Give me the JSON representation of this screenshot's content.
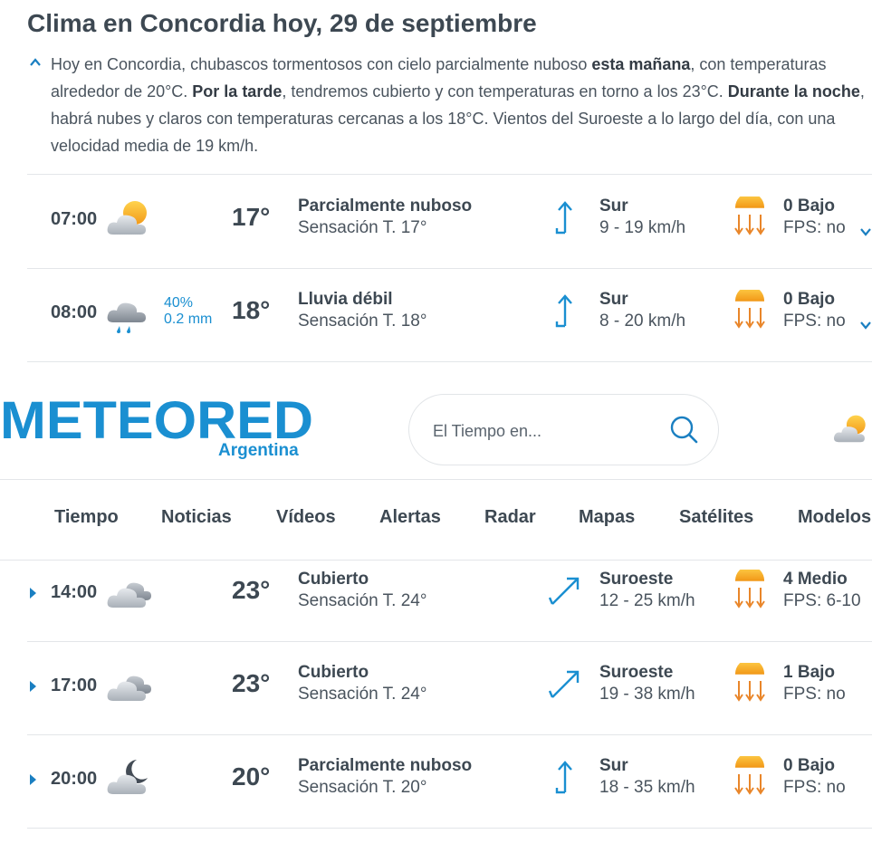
{
  "page_title": "Clima en Concordia hoy, 29 de septiembre",
  "summary": {
    "p1": "Hoy en Concordia, chubascos tormentosos con cielo parcialmente nuboso ",
    "b1": "esta mañana",
    "p2": ", con temperaturas alrededor de 20°C. ",
    "b2": "Por la tarde",
    "p3": ", tendremos cubierto y con temperaturas en torno a los 23°C. ",
    "b3": "Durante la noche",
    "p4": ", habrá nubes y claros con temperaturas cercanas a los 18°C. Vientos del Suroeste a lo largo del día, con una velocidad media de 19 km/h."
  },
  "rows_top": [
    {
      "time": "07:00",
      "icon": "sun-cloud-icon",
      "rain_pct": "",
      "rain_mm": "",
      "temp": "17°",
      "desc": "Parcialmente nuboso",
      "feel": "Sensación T. 17°",
      "wind_dir": "Sur",
      "wind_speed": "9 - 19 km/h",
      "uv": "0 Bajo",
      "fps": "FPS: no"
    },
    {
      "time": "08:00",
      "icon": "rain-cloud-icon",
      "rain_pct": "40%",
      "rain_mm": "0.2 mm",
      "temp": "18°",
      "desc": "Lluvia débil",
      "feel": "Sensación T. 18°",
      "wind_dir": "Sur",
      "wind_speed": "8 - 20 km/h",
      "uv": "0 Bajo",
      "fps": "FPS: no"
    }
  ],
  "header": {
    "logo_text": "METEORED",
    "logo_sub": "Argentina",
    "search_placeholder": "El Tiempo en..."
  },
  "nav": [
    "Tiempo",
    "Noticias",
    "Vídeos",
    "Alertas",
    "Radar",
    "Mapas",
    "Satélites",
    "Modelos"
  ],
  "rows_bottom": [
    {
      "time": "14:00",
      "icon": "cloud-icon",
      "temp": "23°",
      "desc": "Cubierto",
      "feel": "Sensación T. 24°",
      "wind_dir": "Suroeste",
      "wind_speed": "12 - 25 km/h",
      "uv": "4 Medio",
      "fps": "FPS: 6-10"
    },
    {
      "time": "17:00",
      "icon": "cloud-icon",
      "temp": "23°",
      "desc": "Cubierto",
      "feel": "Sensación T. 24°",
      "wind_dir": "Suroeste",
      "wind_speed": "19 - 38 km/h",
      "uv": "1 Bajo",
      "fps": "FPS: no"
    },
    {
      "time": "20:00",
      "icon": "moon-cloud-icon",
      "temp": "20°",
      "desc": "Parcialmente nuboso",
      "feel": "Sensación T. 20°",
      "wind_dir": "Sur",
      "wind_speed": "18 - 35 km/h",
      "uv": "0 Bajo",
      "fps": "FPS: no"
    }
  ],
  "colors": {
    "accent": "#1a8fd1",
    "text": "#3d4852",
    "divider": "#e3e6e9"
  }
}
